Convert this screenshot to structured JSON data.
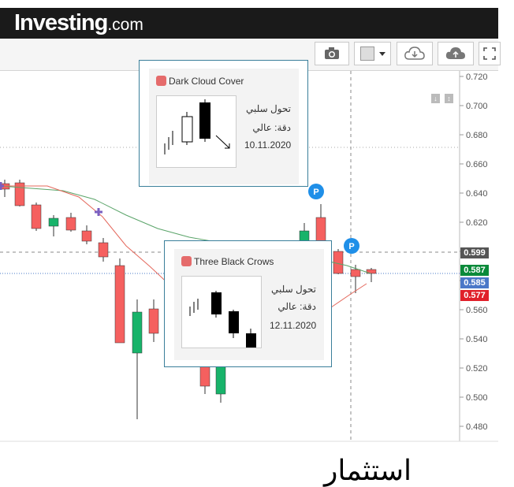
{
  "header": {
    "logo_main": "Investing",
    "logo_suffix": ".com"
  },
  "toolbar": {
    "buttons": [
      "camera-icon",
      "color-swatch",
      "cloud-download-icon",
      "cloud-upload-icon",
      "fullscreen-icon"
    ]
  },
  "axis": {
    "ticks": [
      "0.720",
      "0.700",
      "0.680",
      "0.660",
      "0.640",
      "0.620",
      "0.600",
      "0.580",
      "0.560",
      "0.540",
      "0.520",
      "0.500",
      "0.480"
    ],
    "price_labels": [
      {
        "value": "0.599",
        "color": "#555555"
      },
      {
        "value": "0.587",
        "color": "#0a8a3a"
      },
      {
        "value": "0.585",
        "color": "#4a78c8"
      },
      {
        "value": "0.577",
        "color": "#e0202a"
      }
    ]
  },
  "tooltips": [
    {
      "title": "Dark Cloud Cover",
      "line1": "تحول سلبي",
      "line2": "دقة: عالي",
      "date": "10.11.2020"
    },
    {
      "title": "Three Black Crows",
      "line1": "تحول سلبي",
      "line2": "دقة: عالي",
      "date": "12.11.2020"
    }
  ],
  "markers": [
    "P",
    "P"
  ],
  "watermark": "استثمار",
  "colors": {
    "bull": "#18b36a",
    "bear": "#f5605f",
    "ma_green": "#5aa469",
    "ma_red": "#e4685c"
  }
}
